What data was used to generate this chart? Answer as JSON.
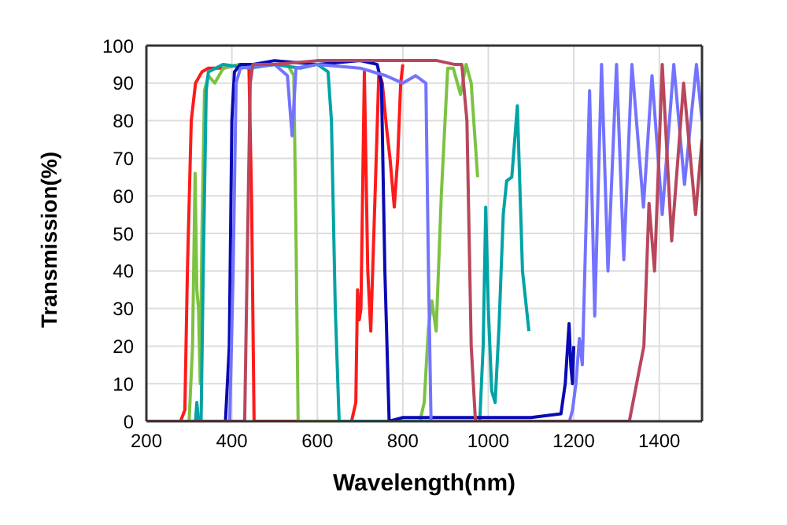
{
  "chart_data": {
    "type": "line",
    "xlabel": "Wavelength(nm)",
    "ylabel": "Transmission(%)",
    "xlim": [
      200,
      1500
    ],
    "xticks": [
      200,
      400,
      600,
      800,
      1000,
      1200,
      1400
    ],
    "ylim": [
      0,
      100
    ],
    "yticks": [
      0,
      10,
      20,
      30,
      40,
      50,
      60,
      70,
      80,
      90,
      100
    ],
    "grid": true,
    "marker": "none",
    "line_style": "solid",
    "series": [
      {
        "color": "#ff1a1a",
        "x": [
          200,
          280,
          290,
          296,
          305,
          315,
          330,
          345,
          380,
          420,
          440,
          446,
          452,
          460,
          680,
          690,
          694,
          698,
          702,
          710,
          718,
          725,
          735,
          744,
          752,
          762,
          770,
          780,
          788,
          795,
          800
        ],
        "values": [
          0,
          0,
          3,
          40,
          80,
          90,
          93,
          94,
          94,
          95,
          94,
          60,
          0,
          0,
          0,
          5,
          35,
          27,
          30,
          93,
          40,
          24,
          60,
          93,
          90,
          78,
          70,
          57,
          70,
          90,
          95
        ]
      },
      {
        "color": "#7dc242",
        "x": [
          200,
          300,
          308,
          314,
          318,
          322,
          326,
          330,
          336,
          345,
          360,
          380,
          420,
          480,
          530,
          545,
          550,
          555,
          840,
          850,
          860,
          868,
          878,
          890,
          905,
          918,
          935,
          948,
          960,
          975
        ],
        "values": [
          0,
          0,
          20,
          66,
          35,
          30,
          10,
          50,
          88,
          92,
          90,
          94,
          95,
          95,
          95,
          92,
          50,
          0,
          0,
          5,
          25,
          32,
          24,
          60,
          94,
          94,
          87,
          95,
          90,
          65
        ]
      },
      {
        "color": "#00a3a6",
        "x": [
          200,
          315,
          318,
          322,
          328,
          333,
          340,
          345,
          380,
          440,
          500,
          560,
          600,
          625,
          633,
          642,
          651,
          980,
          988,
          994,
          1000,
          1008,
          1016,
          1025,
          1035,
          1043,
          1055,
          1068,
          1080,
          1095
        ],
        "values": [
          0,
          0,
          5,
          0,
          0,
          40,
          88,
          93,
          95,
          94,
          95,
          94,
          95,
          93,
          80,
          30,
          0,
          0,
          20,
          57,
          30,
          8,
          5,
          25,
          55,
          64,
          65,
          84,
          40,
          24
        ]
      },
      {
        "color": "#0a0ab4",
        "x": [
          200,
          385,
          394,
          400,
          406,
          420,
          450,
          500,
          600,
          700,
          740,
          750,
          758,
          768,
          800,
          900,
          1000,
          1100,
          1170,
          1180,
          1189,
          1193,
          1197,
          1200
        ],
        "values": [
          0,
          0,
          20,
          80,
          93,
          95,
          95,
          96,
          95,
          96,
          95,
          90,
          40,
          0,
          1,
          1,
          1,
          1,
          2,
          10,
          26,
          15,
          10,
          20
        ]
      },
      {
        "color": "#7373ff",
        "x": [
          200,
          395,
          403,
          410,
          420,
          500,
          530,
          541,
          550,
          600,
          700,
          760,
          800,
          830,
          854,
          860,
          866,
          900,
          1000,
          1100,
          1190,
          1197,
          1205,
          1213,
          1220,
          1237,
          1249,
          1265,
          1280,
          1300,
          1317,
          1336,
          1363,
          1383,
          1407,
          1434,
          1459,
          1487,
          1500
        ],
        "values": [
          0,
          0,
          40,
          90,
          94,
          95,
          92,
          76,
          94,
          95,
          94,
          92,
          90,
          92,
          90,
          40,
          0,
          0,
          0,
          0,
          0,
          3,
          10,
          22,
          15,
          88,
          28,
          95,
          40,
          95,
          43,
          95,
          57,
          92,
          55,
          95,
          63,
          95,
          80
        ]
      },
      {
        "color": "#b8475c",
        "x": [
          200,
          430,
          437,
          443,
          449,
          500,
          600,
          700,
          800,
          880,
          920,
          938,
          950,
          960,
          970,
          1100,
          1200,
          1330,
          1364,
          1376,
          1389,
          1407,
          1429,
          1457,
          1485,
          1500
        ],
        "values": [
          0,
          0,
          50,
          90,
          95,
          95,
          96,
          96,
          96,
          96,
          95,
          95,
          80,
          20,
          0,
          0,
          0,
          0,
          20,
          58,
          40,
          95,
          48,
          90,
          55,
          75
        ]
      }
    ]
  }
}
